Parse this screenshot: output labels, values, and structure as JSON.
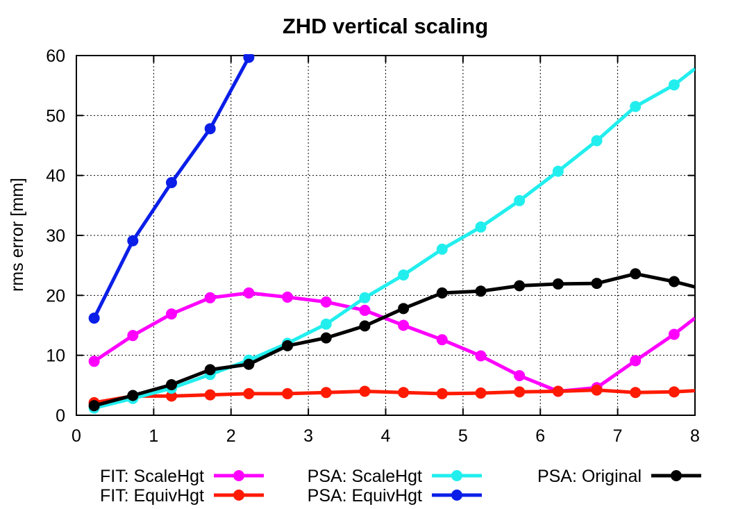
{
  "chart_data": {
    "type": "line",
    "title": "ZHD vertical scaling",
    "xlabel": "",
    "ylabel": "rms error [mm]",
    "xlim": [
      0,
      8
    ],
    "ylim": [
      0,
      60
    ],
    "xticks": [
      0,
      1,
      2,
      3,
      4,
      5,
      6,
      7,
      8
    ],
    "yticks": [
      0,
      10,
      20,
      30,
      40,
      50,
      60
    ],
    "grid": true,
    "legend_position": "bottom",
    "series": [
      {
        "name": "FIT: ScaleHgt",
        "color": "#ff00ff",
        "x": [
          0.23,
          0.73,
          1.23,
          1.73,
          2.23,
          2.73,
          3.23,
          3.73,
          4.23,
          4.73,
          5.23,
          5.73,
          6.23,
          6.73,
          7.23,
          7.73,
          8.0
        ],
        "y": [
          9.0,
          13.3,
          16.9,
          19.6,
          20.4,
          19.7,
          18.9,
          17.5,
          15.0,
          12.6,
          9.9,
          6.6,
          4.0,
          4.6,
          9.1,
          13.5,
          16.2
        ]
      },
      {
        "name": "FIT: EquivHgt",
        "color": "#ff1a00",
        "x": [
          0.23,
          0.73,
          1.23,
          1.73,
          2.23,
          2.73,
          3.23,
          3.73,
          4.23,
          4.73,
          5.23,
          5.73,
          6.23,
          6.73,
          7.23,
          7.73,
          8.0
        ],
        "y": [
          2.1,
          3.2,
          3.2,
          3.4,
          3.6,
          3.6,
          3.8,
          4.0,
          3.8,
          3.6,
          3.7,
          3.9,
          4.0,
          4.2,
          3.8,
          3.9,
          4.1
        ]
      },
      {
        "name": "PSA: ScaleHgt",
        "color": "#22eeee",
        "x": [
          0.23,
          0.73,
          1.23,
          1.73,
          2.23,
          2.73,
          3.23,
          3.73,
          4.23,
          4.73,
          5.23,
          5.73,
          6.23,
          6.73,
          7.23,
          7.73,
          8.0
        ],
        "y": [
          1.2,
          2.8,
          4.5,
          6.8,
          9.2,
          12.0,
          15.2,
          19.6,
          23.4,
          27.7,
          31.4,
          35.8,
          40.7,
          45.8,
          51.5,
          55.1,
          57.8
        ]
      },
      {
        "name": "PSA: EquivHgt",
        "color": "#0a1ee8",
        "x": [
          0.23,
          0.73,
          1.23,
          1.73,
          2.23
        ],
        "y": [
          16.2,
          29.1,
          38.8,
          47.8,
          59.7
        ]
      },
      {
        "name": "PSA: Original",
        "color": "#000000",
        "x": [
          0.23,
          0.73,
          1.23,
          1.73,
          2.23,
          2.73,
          3.23,
          3.73,
          4.23,
          4.73,
          5.23,
          5.73,
          6.23,
          6.73,
          7.23,
          7.73,
          8.0
        ],
        "y": [
          1.6,
          3.3,
          5.1,
          7.6,
          8.5,
          11.6,
          12.9,
          14.9,
          17.8,
          20.4,
          20.7,
          21.6,
          21.9,
          22.0,
          23.6,
          22.3,
          21.4
        ]
      }
    ]
  }
}
